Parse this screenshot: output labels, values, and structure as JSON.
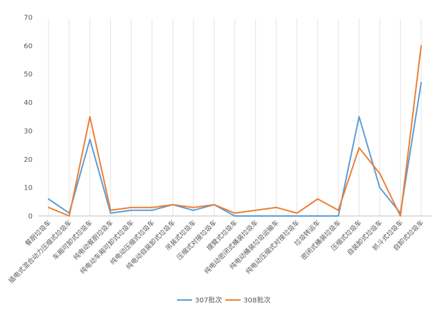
{
  "chart_data": {
    "type": "line",
    "categories": [
      "餐厨垃圾车",
      "插电式混合动力压缩式垃圾车",
      "车厢可卸式垃圾车",
      "纯电动餐厨垃圾车",
      "纯电动车厢可卸式垃圾车",
      "纯电动压缩式垃圾车",
      "纯电动自装卸式垃圾车",
      "吊装式垃圾车",
      "压缩式对接垃圾车",
      "摆臂式垃圾车",
      "纯电动密闭式桶装垃圾车",
      "纯电动桶装垃圾运输车",
      "纯电动压缩式对接垃圾车",
      "垃圾转运车",
      "密闭式桶装垃圾车",
      "压缩式垃圾车",
      "自装卸式垃圾车",
      "抓斗式垃圾车",
      "自卸式垃圾车"
    ],
    "series": [
      {
        "name": "307批次",
        "color": "#5B9BD5",
        "values": [
          6,
          1,
          27,
          1,
          2,
          2,
          4,
          2,
          4,
          0,
          0,
          0,
          0,
          0,
          0,
          35,
          10,
          1,
          47
        ]
      },
      {
        "name": "308批次",
        "color": "#ED7D31",
        "values": [
          3,
          0,
          35,
          2,
          3,
          3,
          4,
          3,
          4,
          1,
          2,
          3,
          1,
          6,
          2,
          24,
          15,
          0,
          60
        ]
      }
    ],
    "ylim": [
      0,
      70
    ],
    "yticks": [
      0,
      10,
      20,
      30,
      40,
      50,
      60,
      70
    ],
    "grid": "vertical category lines",
    "legend": "bottom-center"
  }
}
